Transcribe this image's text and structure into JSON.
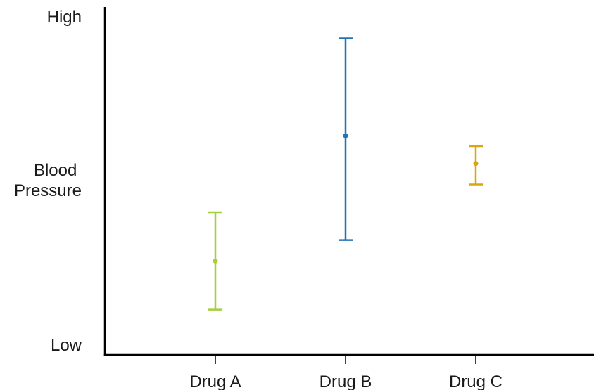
{
  "chart_data": {
    "type": "errorbar",
    "title": "",
    "xlabel": "",
    "ylabel": "Blood Pressure",
    "ylabel_lines": [
      "Blood",
      "Pressure"
    ],
    "y_low_label": "Low",
    "y_high_label": "High",
    "ylim": [
      0,
      100
    ],
    "categories": [
      "Drug A",
      "Drug B",
      "Drug C"
    ],
    "series": [
      {
        "category": "Drug A",
        "mean": 27,
        "lower": 13,
        "upper": 41,
        "color": "#a6cf3a"
      },
      {
        "category": "Drug B",
        "mean": 63,
        "lower": 33,
        "upper": 91,
        "color": "#1f73b8"
      },
      {
        "category": "Drug C",
        "mean": 55,
        "lower": 49,
        "upper": 60,
        "color": "#d9a70c"
      }
    ],
    "grid": false,
    "legend": "none",
    "axis_color": "#000000"
  }
}
